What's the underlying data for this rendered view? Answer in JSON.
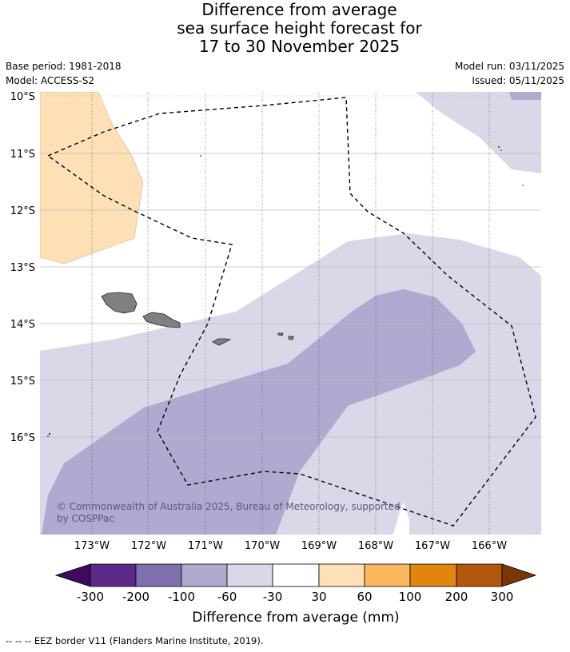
{
  "title": {
    "line1": "Difference from average",
    "line2": "sea surface height forecast for",
    "line3": "17 to 30 November 2025"
  },
  "meta": {
    "base_period": "Base period: 1981-2018",
    "model": "Model: ACCESS-S2",
    "model_run": "Model run: 03/11/2025",
    "issued": "Issued: 05/11/2025"
  },
  "map": {
    "lat_labels": [
      "10°S",
      "11°S",
      "12°S",
      "13°S",
      "14°S",
      "15°S",
      "16°S"
    ],
    "lon_labels": [
      "173°W",
      "172°W",
      "171°W",
      "170°W",
      "169°W",
      "168°W",
      "167°W",
      "166°W"
    ],
    "copyright_line1": "© Commonwealth of Australia 2025, Bureau of Meteorology, supported",
    "copyright_line2": "by COSPPac",
    "colors": {
      "neg_200_300": "#5c2a8a",
      "neg_100_200": "#8071ae",
      "neg_60_100": "#b0a9d0",
      "neg_30_60": "#d8d8e9",
      "neutral": "#ffffff",
      "pos_30_60": "#fde0b6",
      "pos_60_100": "#fbb75f",
      "pos_100_200": "#e38310",
      "pos_200_300": "#b3570c",
      "land": "#808080"
    }
  },
  "legend": {
    "tick_labels": [
      "-300",
      "-200",
      "-100",
      "-60",
      "-30",
      "30",
      "60",
      "100",
      "200",
      "300"
    ],
    "title": "Difference from average (mm)"
  },
  "footnote": "-- -- -- EEZ border V11 (Flanders Marine Institute, 2019)."
}
